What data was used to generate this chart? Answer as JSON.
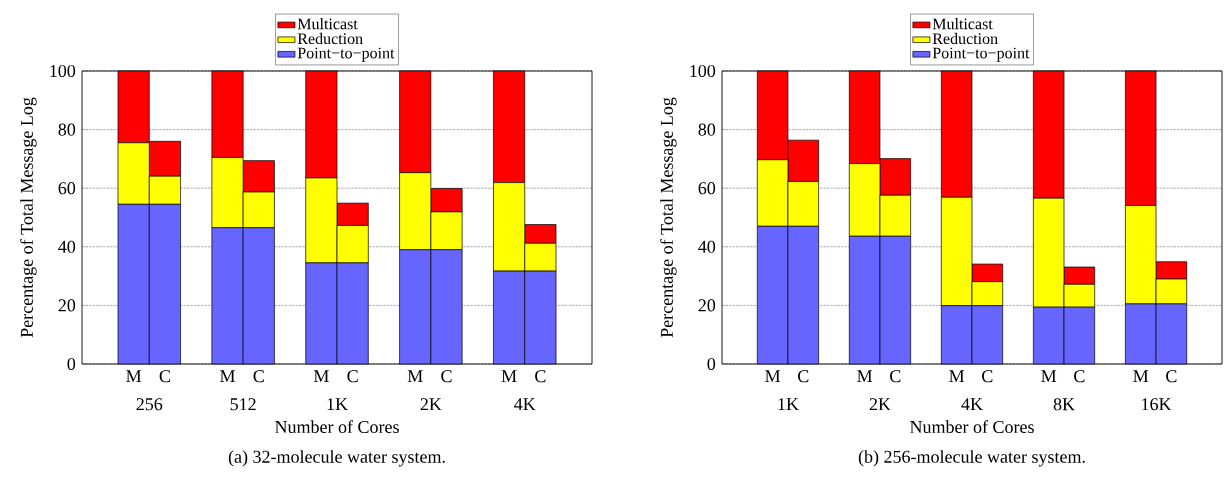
{
  "chart_data": [
    {
      "type": "bar",
      "stacked": true,
      "title": "(a) 32-molecule water system.",
      "xlabel": "Number of Cores",
      "ylabel": "Percentage of Total Message Log",
      "categories": [
        "M",
        "C",
        "M",
        "C",
        "M",
        "C",
        "M",
        "C",
        "M",
        "C"
      ],
      "annotations": [
        "256",
        "512",
        "1K",
        "2K",
        "4K"
      ],
      "series": [
        {
          "name": "Point−to−point",
          "color": "#6666ff",
          "values": [
            54.5,
            54.5,
            46.5,
            46.5,
            34.5,
            34.5,
            39.0,
            39.0,
            31.7,
            31.7
          ]
        },
        {
          "name": "Reduction",
          "color": "#ffff00",
          "values": [
            21.0,
            9.6,
            24.0,
            12.2,
            29.0,
            12.8,
            26.3,
            12.9,
            30.2,
            9.5
          ]
        },
        {
          "name": "Multicast",
          "color": "#ff0000",
          "values": [
            24.5,
            11.9,
            29.5,
            10.7,
            36.5,
            7.6,
            34.7,
            8.0,
            38.1,
            6.4
          ]
        }
      ],
      "ylim": [
        0,
        100
      ],
      "yticks": [
        0,
        20,
        40,
        60,
        80,
        100
      ],
      "grid": "y",
      "legend": "top"
    },
    {
      "type": "bar",
      "stacked": true,
      "title": "(b) 256-molecule water system.",
      "xlabel": "Number of Cores",
      "ylabel": "Percentage of Total Message Log",
      "categories": [
        "M",
        "C",
        "M",
        "C",
        "M",
        "C",
        "M",
        "C",
        "M",
        "C"
      ],
      "annotations": [
        "1K",
        "2K",
        "4K",
        "8K",
        "16K"
      ],
      "series": [
        {
          "name": "Point−to−point",
          "color": "#6666ff",
          "values": [
            47.0,
            47.0,
            43.6,
            43.6,
            19.9,
            19.9,
            19.4,
            19.4,
            20.5,
            20.5
          ]
        },
        {
          "name": "Reduction",
          "color": "#ffff00",
          "values": [
            22.7,
            15.3,
            24.8,
            14.0,
            37.0,
            8.2,
            37.2,
            7.8,
            33.6,
            8.5
          ]
        },
        {
          "name": "Multicast",
          "color": "#ff0000",
          "values": [
            30.3,
            14.1,
            31.6,
            12.5,
            43.1,
            6.0,
            43.4,
            5.9,
            45.9,
            5.9
          ]
        }
      ],
      "ylim": [
        0,
        100
      ],
      "yticks": [
        0,
        20,
        40,
        60,
        80,
        100
      ],
      "grid": "y",
      "legend": "top"
    }
  ]
}
